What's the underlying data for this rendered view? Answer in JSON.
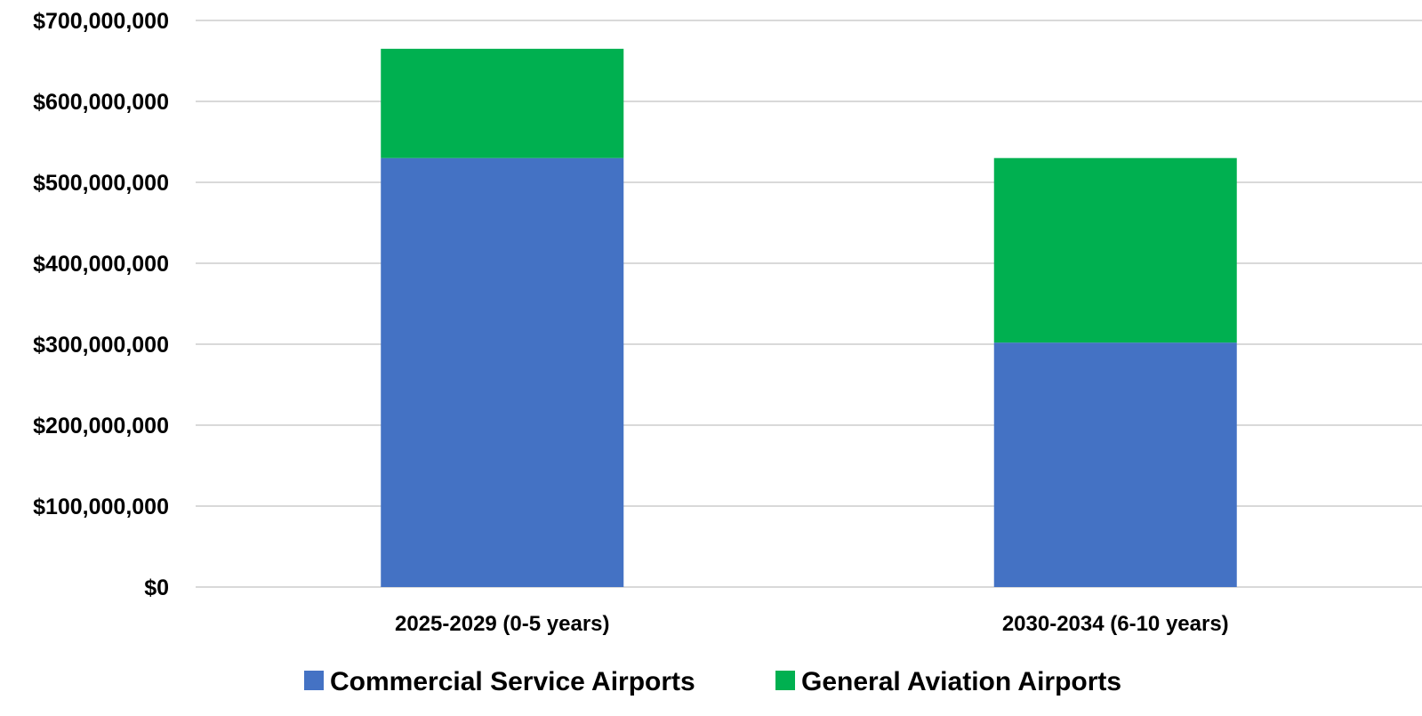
{
  "chart_data": {
    "type": "bar",
    "stacked": true,
    "categories": [
      "2025-2029 (0-5 years)",
      "2030-2034 (6-10 years)"
    ],
    "series": [
      {
        "name": "Commercial Service Airports",
        "color": "#4472c4",
        "values": [
          530000000,
          302000000
        ]
      },
      {
        "name": "General Aviation Airports",
        "color": "#00b050",
        "values": [
          135000000,
          228000000
        ]
      }
    ],
    "y_ticks": [
      "$0",
      "$100,000,000",
      "$200,000,000",
      "$300,000,000",
      "$400,000,000",
      "$500,000,000",
      "$600,000,000",
      "$700,000,000"
    ],
    "ylim": [
      0,
      700000000
    ],
    "title": "",
    "xlabel": "",
    "ylabel": "",
    "grid": true,
    "legend_position": "bottom"
  }
}
